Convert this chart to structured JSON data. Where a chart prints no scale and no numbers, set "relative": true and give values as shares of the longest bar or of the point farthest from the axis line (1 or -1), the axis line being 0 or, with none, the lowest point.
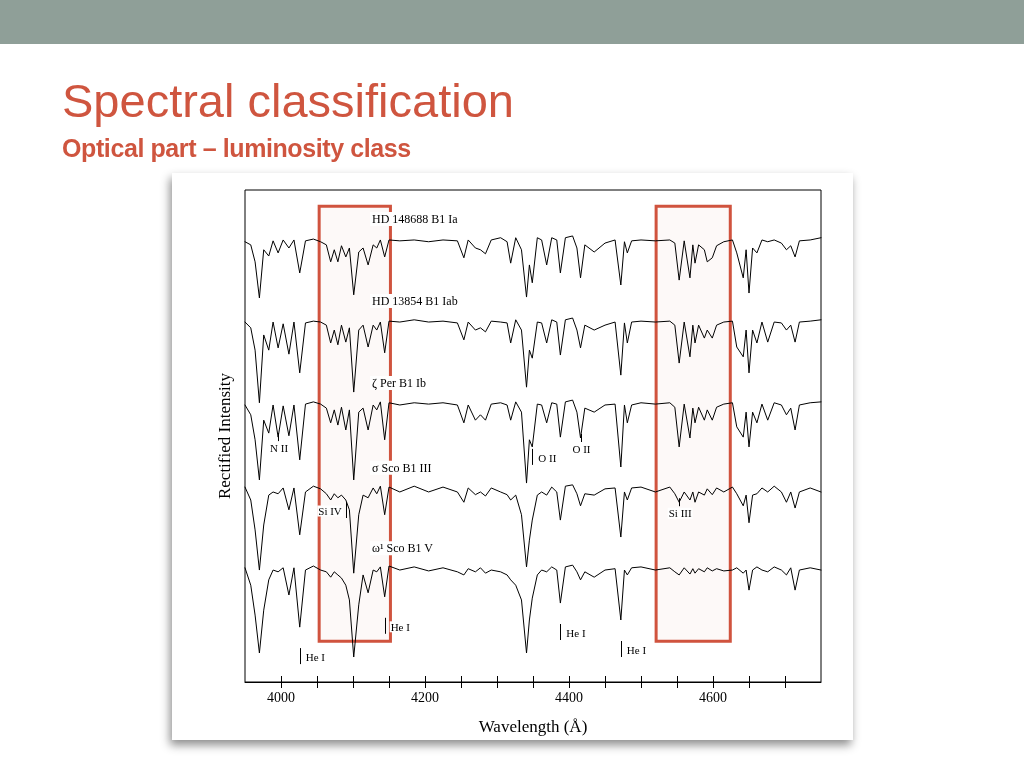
{
  "chart_data": {
    "type": "line",
    "title": "Spectral classification",
    "subtitle": "Optical part – luminosity class",
    "xlabel": "Wavelength (Å)",
    "ylabel": "Rectified Intensity",
    "relative": true,
    "x": [
      3950,
      3958,
      3964,
      3970,
      3976,
      3983,
      3989,
      3996,
      4003,
      4011,
      4018,
      4026,
      4034,
      4045,
      4055,
      4063,
      4069,
      4074,
      4079,
      4084,
      4090,
      4095,
      4101,
      4108,
      4114,
      4121,
      4128,
      4133,
      4138,
      4144,
      4150,
      4165,
      4185,
      4205,
      4225,
      4245,
      4254,
      4260,
      4270,
      4277,
      4284,
      4292,
      4305,
      4314,
      4319,
      4326,
      4334,
      4341,
      4345,
      4349,
      4356,
      4362,
      4369,
      4376,
      4383,
      4388,
      4395,
      4405,
      4411,
      4416,
      4422,
      4435,
      4450,
      4464,
      4472,
      4477,
      4481,
      4487,
      4500,
      4520,
      4540,
      4547,
      4553,
      4560,
      4568,
      4572,
      4575,
      4580,
      4588,
      4592,
      4599,
      4605,
      4615,
      4627,
      4633,
      4642,
      4646,
      4650,
      4655,
      4661,
      4668,
      4676,
      4685,
      4695,
      4702,
      4708,
      4714,
      4720,
      4735,
      4750
    ],
    "series": [
      {
        "name": "HD 148688 B1 Ia",
        "color": "#000000",
        "values": [
          0.987,
          0.98,
          0.942,
          0.861,
          0.969,
          0.955,
          0.989,
          0.962,
          0.991,
          0.973,
          0.991,
          0.917,
          0.989,
          0.993,
          0.987,
          0.98,
          0.942,
          0.969,
          0.942,
          0.978,
          0.953,
          0.973,
          0.868,
          0.964,
          0.973,
          0.935,
          0.98,
          0.973,
          0.991,
          0.953,
          0.991,
          0.989,
          0.991,
          0.987,
          0.991,
          0.989,
          0.951,
          0.991,
          0.973,
          0.969,
          0.96,
          0.991,
          0.996,
          0.987,
          0.939,
          0.996,
          0.969,
          0.863,
          0.935,
          0.895,
          0.996,
          0.991,
          0.935,
          0.996,
          0.991,
          0.917,
          0.996,
          1.0,
          0.973,
          0.906,
          0.98,
          0.964,
          0.984,
          0.991,
          0.89,
          0.987,
          0.962,
          0.989,
          0.991,
          0.989,
          0.991,
          0.984,
          0.901,
          0.989,
          0.906,
          0.98,
          0.939,
          0.98,
          0.969,
          0.942,
          0.951,
          0.978,
          0.987,
          0.991,
          0.962,
          0.906,
          0.969,
          0.872,
          0.973,
          0.962,
          0.991,
          0.987,
          0.991,
          0.984,
          0.969,
          0.978,
          0.953,
          0.989,
          0.991,
          0.996
        ]
      },
      {
        "name": "HD 13854 B1 Iab",
        "color": "#000000",
        "values": [
          0.807,
          0.794,
          0.744,
          0.626,
          0.778,
          0.744,
          0.807,
          0.749,
          0.803,
          0.735,
          0.807,
          0.693,
          0.805,
          0.809,
          0.807,
          0.8,
          0.76,
          0.789,
          0.756,
          0.8,
          0.762,
          0.794,
          0.65,
          0.789,
          0.8,
          0.751,
          0.8,
          0.789,
          0.807,
          0.738,
          0.809,
          0.807,
          0.812,
          0.807,
          0.809,
          0.805,
          0.767,
          0.807,
          0.789,
          0.794,
          0.785,
          0.809,
          0.807,
          0.805,
          0.76,
          0.812,
          0.789,
          0.661,
          0.744,
          0.726,
          0.807,
          0.805,
          0.76,
          0.812,
          0.807,
          0.733,
          0.812,
          0.816,
          0.789,
          0.749,
          0.8,
          0.789,
          0.8,
          0.807,
          0.688,
          0.805,
          0.76,
          0.807,
          0.809,
          0.807,
          0.809,
          0.8,
          0.715,
          0.807,
          0.729,
          0.8,
          0.76,
          0.8,
          0.771,
          0.789,
          0.771,
          0.8,
          0.807,
          0.809,
          0.751,
          0.729,
          0.789,
          0.693,
          0.789,
          0.76,
          0.807,
          0.762,
          0.807,
          0.805,
          0.789,
          0.8,
          0.762,
          0.807,
          0.809,
          0.812
        ]
      },
      {
        "name": "ζ Per B1 Ib",
        "color": "#000000",
        "values": [
          0.621,
          0.599,
          0.543,
          0.453,
          0.587,
          0.558,
          0.621,
          0.549,
          0.619,
          0.552,
          0.621,
          0.498,
          0.623,
          0.628,
          0.623,
          0.614,
          0.581,
          0.61,
          0.576,
          0.616,
          0.565,
          0.61,
          0.453,
          0.605,
          0.614,
          0.565,
          0.621,
          0.61,
          0.628,
          0.543,
          0.626,
          0.621,
          0.626,
          0.623,
          0.626,
          0.621,
          0.581,
          0.621,
          0.587,
          0.599,
          0.587,
          0.623,
          0.626,
          0.621,
          0.587,
          0.628,
          0.605,
          0.446,
          0.543,
          0.527,
          0.623,
          0.621,
          0.581,
          0.626,
          0.623,
          0.549,
          0.628,
          0.632,
          0.605,
          0.547,
          0.614,
          0.605,
          0.621,
          0.623,
          0.482,
          0.621,
          0.581,
          0.621,
          0.626,
          0.623,
          0.626,
          0.616,
          0.527,
          0.623,
          0.547,
          0.614,
          0.581,
          0.616,
          0.587,
          0.61,
          0.587,
          0.616,
          0.623,
          0.626,
          0.572,
          0.549,
          0.605,
          0.527,
          0.605,
          0.581,
          0.623,
          0.587,
          0.626,
          0.621,
          0.599,
          0.614,
          0.565,
          0.621,
          0.626,
          0.628
        ]
      },
      {
        "name": "σ Sco B1 III",
        "color": "#000000",
        "values": [
          0.437,
          0.408,
          0.341,
          0.251,
          0.352,
          0.419,
          0.426,
          0.422,
          0.435,
          0.386,
          0.435,
          0.33,
          0.426,
          0.439,
          0.433,
          0.422,
          0.408,
          0.422,
          0.413,
          0.419,
          0.408,
          0.386,
          0.244,
          0.375,
          0.419,
          0.413,
          0.435,
          0.422,
          0.439,
          0.375,
          0.437,
          0.426,
          0.439,
          0.426,
          0.437,
          0.426,
          0.403,
          0.435,
          0.42,
          0.426,
          0.417,
          0.435,
          0.426,
          0.42,
          0.408,
          0.419,
          0.375,
          0.258,
          0.318,
          0.363,
          0.419,
          0.426,
          0.419,
          0.437,
          0.426,
          0.363,
          0.439,
          0.442,
          0.422,
          0.395,
          0.422,
          0.419,
          0.433,
          0.435,
          0.325,
          0.426,
          0.408,
          0.435,
          0.437,
          0.426,
          0.437,
          0.422,
          0.403,
          0.426,
          0.408,
          0.426,
          0.403,
          0.426,
          0.419,
          0.433,
          0.42,
          0.435,
          0.426,
          0.437,
          0.422,
          0.395,
          0.419,
          0.357,
          0.419,
          0.422,
          0.435,
          0.426,
          0.439,
          0.426,
          0.403,
          0.426,
          0.39,
          0.426,
          0.435,
          0.426
        ]
      },
      {
        "name": "ω¹ Sco B1 V",
        "color": "#000000",
        "values": [
          0.256,
          0.217,
          0.15,
          0.065,
          0.161,
          0.229,
          0.251,
          0.247,
          0.256,
          0.195,
          0.256,
          0.123,
          0.251,
          0.26,
          0.251,
          0.247,
          0.235,
          0.247,
          0.24,
          0.233,
          0.217,
          0.184,
          0.056,
          0.173,
          0.24,
          0.2,
          0.251,
          0.247,
          0.258,
          0.191,
          0.26,
          0.251,
          0.258,
          0.249,
          0.256,
          0.247,
          0.24,
          0.254,
          0.247,
          0.256,
          0.244,
          0.251,
          0.247,
          0.24,
          0.229,
          0.217,
          0.184,
          0.065,
          0.139,
          0.188,
          0.24,
          0.251,
          0.247,
          0.258,
          0.251,
          0.177,
          0.258,
          0.262,
          0.247,
          0.229,
          0.247,
          0.235,
          0.251,
          0.254,
          0.139,
          0.251,
          0.24,
          0.256,
          0.258,
          0.251,
          0.256,
          0.247,
          0.24,
          0.256,
          0.242,
          0.254,
          0.244,
          0.254,
          0.247,
          0.256,
          0.249,
          0.254,
          0.249,
          0.251,
          0.256,
          0.244,
          0.251,
          0.206,
          0.251,
          0.258,
          0.251,
          0.247,
          0.258,
          0.251,
          0.24,
          0.256,
          0.206,
          0.251,
          0.256,
          0.251
        ]
      }
    ],
    "xlim": [
      3950,
      4750
    ],
    "xticks": [
      4000,
      {
        "value": 4050,
        "label": null
      },
      {
        "value": 4100,
        "label": null
      },
      {
        "value": 4150,
        "label": null
      },
      4200,
      {
        "value": 4250,
        "label": null
      },
      {
        "value": 4300,
        "label": null
      },
      {
        "value": 4350,
        "label": null
      },
      4400,
      {
        "value": 4450,
        "label": null
      },
      {
        "value": 4500,
        "label": null
      },
      {
        "value": 4550,
        "label": null
      },
      4600,
      {
        "value": 4650,
        "label": null
      },
      {
        "value": 4700,
        "label": null
      }
    ],
    "bands": [
      {
        "axis": "x",
        "from": 4053,
        "to": 4152,
        "color": "#d0533e"
      },
      {
        "axis": "x",
        "from": 4521,
        "to": 4624,
        "color": "#d0533e"
      }
    ],
    "annotations": [
      {
        "text": "N II",
        "x": 3996,
        "y": 0.549
      },
      {
        "text": "Si IV",
        "x": 4090,
        "y": 0.408
      },
      {
        "text": "O II",
        "x": 4349,
        "y": 0.527
      },
      {
        "text": "O II",
        "x": 4416,
        "y": 0.547
      },
      {
        "text": "Si III",
        "x": 4553,
        "y": 0.403
      },
      {
        "text": "He I",
        "x": 4026,
        "y": 0.123
      },
      {
        "text": "He I",
        "x": 4144,
        "y": 0.191
      },
      {
        "text": "He I",
        "x": 4388,
        "y": 0.177
      },
      {
        "text": "He I",
        "x": 4472,
        "y": 0.139
      }
    ]
  }
}
